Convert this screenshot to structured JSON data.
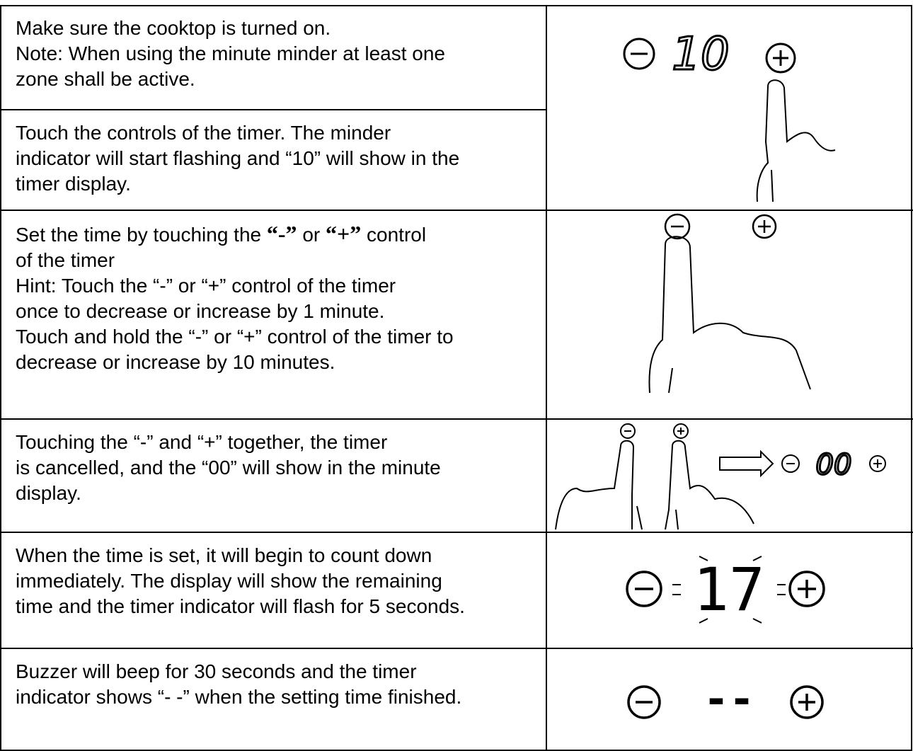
{
  "rows": [
    {
      "lines": [
        "Make sure the cooktop is turned on.",
        "Note: When using the minute minder at least one",
        "zone shall be active."
      ]
    },
    {
      "lines": [
        "Touch the controls of the timer. The minder",
        "indicator will start flashing and “10” will show in the",
        "timer display."
      ],
      "display": "10"
    },
    {
      "lines": [
        [
          "Set the time by touching the ",
          "“-”",
          " or ",
          "“+”",
          " control"
        ],
        "of the timer",
        "Hint: Touch the “-” or “+” control of the timer",
        "once to decrease or increase by 1 minute.",
        "Touch and hold the “-” or “+” control of the timer to",
        "decrease or increase by 10 minutes."
      ]
    },
    {
      "lines": [
        "Touching the “-” and “+” together, the timer",
        "is cancelled, and the “00” will show in the minute",
        "display."
      ],
      "display": "00"
    },
    {
      "lines": [
        "When the time is set, it will begin to count down",
        "immediately. The display will show the remaining",
        "time and the timer indicator will flash for 5 seconds."
      ],
      "display": "17"
    },
    {
      "lines": [
        "Buzzer will beep for 30 seconds and the timer",
        "indicator shows “- -” when the setting time finished."
      ],
      "display": "--"
    }
  ]
}
